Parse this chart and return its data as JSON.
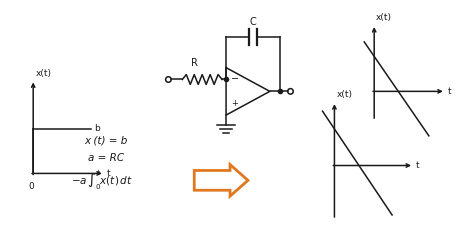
{
  "bg_color": "#ffffff",
  "text_color": "#1a1a1a",
  "arrow_color": "#e07820",
  "gc": "#1a1a1a",
  "label_xt": "x(t)",
  "label_t": "t",
  "label_b": "b",
  "label_0": "0",
  "label_C": "C",
  "label_R": "R",
  "eq1": "x (t) = b",
  "eq2": "a = RC"
}
